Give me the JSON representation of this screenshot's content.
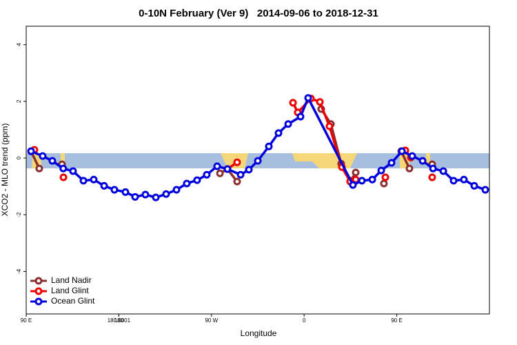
{
  "chart_data": {
    "type": "line",
    "title": "0-10N February (Ver 9)   2014-09-06 to 2018-12-31",
    "x_label": "Longitude",
    "y_label": "XCO2 - MLO trend (ppm)",
    "xlim": [
      90,
      540
    ],
    "ylim": [
      -5.5,
      4.65
    ],
    "xticks": [
      {
        "value": 90,
        "label": "90 E"
      },
      180,
      {
        "value": 270,
        "label": "90 W"
      },
      {
        "value": 360,
        "label": "0"
      },
      {
        "value": 450,
        "label": "90 E"
      },
      180.0001
    ],
    "yticks": [
      -4,
      -2,
      0,
      2,
      4
    ],
    "legend": "bottom-left",
    "series": [
      {
        "name": "Land Nadir",
        "color": "#8b2e2e",
        "x": [
          94.7,
          102.7,
          null,
          124.8,
          null,
          278.2,
          285.5,
          294.9,
          null,
          376.6,
          386,
          396,
          405.4,
          410.1,
          null,
          437.5,
          null,
          454.3,
          462.3,
          null,
          484.4
        ],
        "values": [
          0.24,
          -0.37,
          null,
          -0.22,
          null,
          -0.54,
          -0.39,
          -0.83,
          null,
          1.73,
          1.2,
          -0.2,
          -0.8,
          -0.51,
          null,
          -0.9,
          null,
          0.24,
          -0.37,
          null,
          -0.22
        ]
      },
      {
        "name": "Land Glint",
        "color": "#ee0000",
        "x": [
          98,
          null,
          126.2,
          null,
          285.5,
          294.9,
          null,
          349.2,
          353.8,
          366.6,
          375.3,
          384.6,
          396.7,
          404.7,
          410.1,
          null,
          438.9,
          null,
          458.3,
          463.7,
          null,
          484.4
        ],
        "values": [
          0.29,
          null,
          -0.68,
          null,
          -0.39,
          -0.15,
          null,
          1.95,
          1.61,
          2.1,
          1.98,
          1.12,
          -0.32,
          -0.83,
          -0.76,
          null,
          -0.68,
          null,
          0.27,
          0.02,
          null,
          -0.68
        ]
      },
      {
        "name": "Ocean Glint",
        "color": "#0000dd",
        "x": [
          94.7,
          106,
          115.4,
          126,
          135.5,
          145.6,
          155.6,
          165.7,
          175.7,
          186.4,
          195.8,
          205.8,
          215.9,
          225.9,
          236,
          246,
          256,
          265.4,
          275.5,
          285.5,
          298.3,
          306.3,
          315,
          325.7,
          335.1,
          344.5,
          356.5,
          363.9,
          407.4,
          416.1,
          426.2,
          434.9,
          444.9,
          455,
          465,
          475.1,
          485.2,
          495.2,
          505.2,
          515.2,
          525.3,
          536
        ],
        "values": [
          0.24,
          0.07,
          -0.1,
          -0.37,
          -0.46,
          -0.8,
          -0.76,
          -0.98,
          -1.12,
          -1.2,
          -1.37,
          -1.29,
          -1.39,
          -1.27,
          -1.12,
          -0.9,
          -0.78,
          -0.59,
          -0.29,
          -0.39,
          -0.59,
          -0.41,
          -0.1,
          0.41,
          0.88,
          1.2,
          1.46,
          2.12,
          -0.95,
          -0.8,
          -0.76,
          -0.44,
          -0.17,
          0.24,
          0.07,
          -0.1,
          -0.37,
          -0.46,
          -0.8,
          -0.76,
          -0.98,
          -1.12
        ]
      }
    ]
  }
}
